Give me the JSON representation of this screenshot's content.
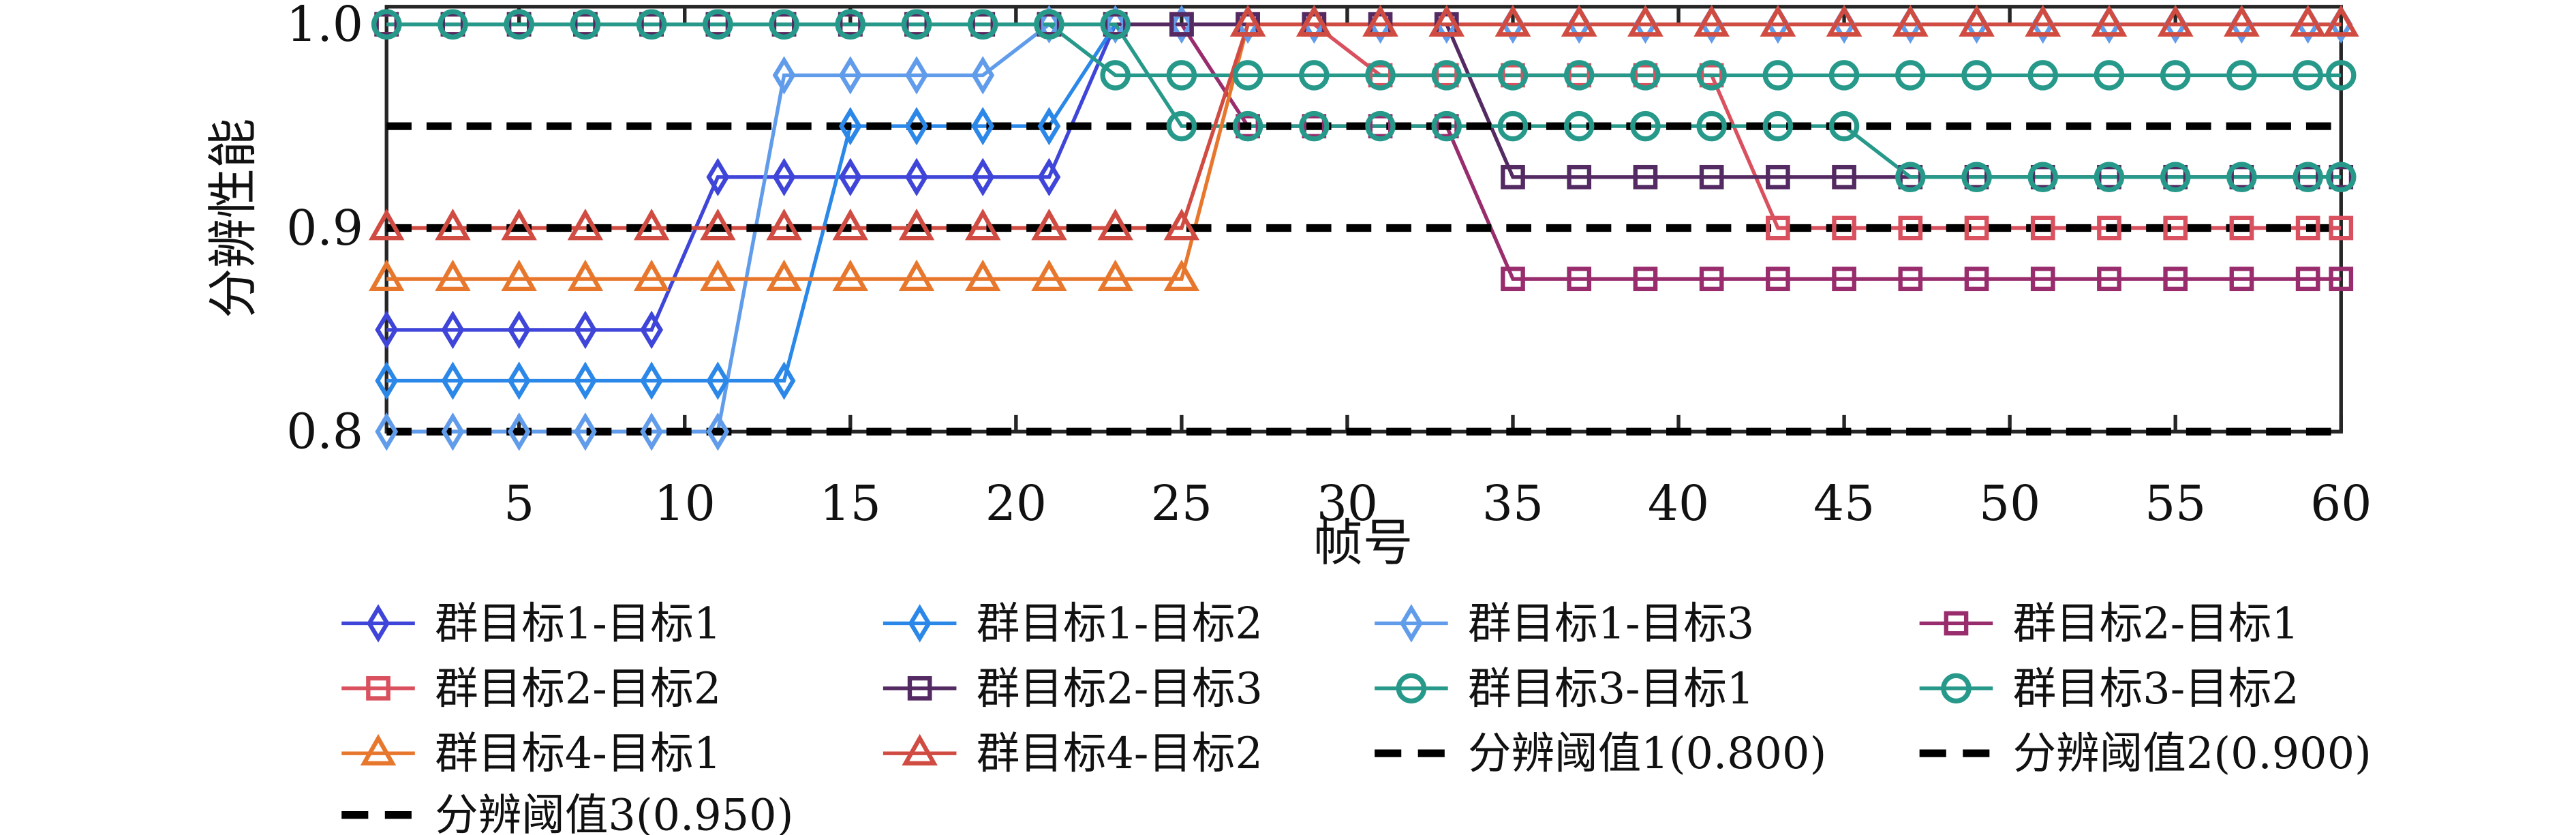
{
  "chart_data": {
    "type": "line",
    "xlabel": "帧号",
    "ylabel": "分辨性能",
    "xlim": [
      1,
      60
    ],
    "ylim": [
      0.8,
      1.009
    ],
    "x_ticks": [
      5,
      10,
      15,
      20,
      25,
      30,
      35,
      40,
      45,
      50,
      55,
      60
    ],
    "y_ticks": [
      "0.8",
      "0.9",
      "1.0"
    ],
    "y_tick_values": [
      0.8,
      0.9,
      1.0
    ],
    "grid": "off",
    "legend_position": "below",
    "x": [
      1,
      3,
      5,
      7,
      9,
      11,
      13,
      15,
      17,
      19,
      21,
      23,
      25,
      27,
      29,
      31,
      33,
      35,
      37,
      39,
      41,
      43,
      45,
      47,
      49,
      51,
      53,
      55,
      57,
      59,
      60
    ],
    "series": [
      {
        "name": "群目标1-目标1",
        "marker": "diamond",
        "color": "#3e45d8",
        "values": [
          0.85,
          0.85,
          0.85,
          0.85,
          0.85,
          0.925,
          0.925,
          0.925,
          0.925,
          0.925,
          0.925,
          1.0,
          1.0,
          1.0,
          1.0,
          1.0,
          1.0,
          1.0,
          1.0,
          1.0,
          1.0,
          1.0,
          1.0,
          1.0,
          1.0,
          1.0,
          1.0,
          1.0,
          1.0,
          1.0,
          1.0
        ]
      },
      {
        "name": "群目标1-目标2",
        "marker": "diamond",
        "color": "#2b87e8",
        "values": [
          0.825,
          0.825,
          0.825,
          0.825,
          0.825,
          0.825,
          0.825,
          0.95,
          0.95,
          0.95,
          0.95,
          1.0,
          1.0,
          1.0,
          1.0,
          1.0,
          1.0,
          1.0,
          1.0,
          1.0,
          1.0,
          1.0,
          1.0,
          1.0,
          1.0,
          1.0,
          1.0,
          1.0,
          1.0,
          1.0,
          1.0
        ]
      },
      {
        "name": "群目标1-目标3",
        "marker": "diamond",
        "color": "#619ceb",
        "values": [
          0.8,
          0.8,
          0.8,
          0.8,
          0.8,
          0.8,
          0.975,
          0.975,
          0.975,
          0.975,
          1.0,
          1.0,
          1.0,
          1.0,
          1.0,
          1.0,
          1.0,
          1.0,
          1.0,
          1.0,
          1.0,
          1.0,
          1.0,
          1.0,
          1.0,
          1.0,
          1.0,
          1.0,
          1.0,
          1.0,
          1.0
        ]
      },
      {
        "name": "群目标2-目标1",
        "marker": "square",
        "color": "#982c6d",
        "values": [
          1.0,
          1.0,
          1.0,
          1.0,
          1.0,
          1.0,
          1.0,
          1.0,
          1.0,
          1.0,
          1.0,
          1.0,
          1.0,
          0.95,
          0.95,
          0.95,
          0.95,
          0.875,
          0.875,
          0.875,
          0.875,
          0.875,
          0.875,
          0.875,
          0.875,
          0.875,
          0.875,
          0.875,
          0.875,
          0.875,
          0.875
        ]
      },
      {
        "name": "群目标2-目标2",
        "marker": "square",
        "color": "#d9505e",
        "values": [
          1.0,
          1.0,
          1.0,
          1.0,
          1.0,
          1.0,
          1.0,
          1.0,
          1.0,
          1.0,
          1.0,
          1.0,
          1.0,
          1.0,
          1.0,
          0.975,
          0.975,
          0.975,
          0.975,
          0.975,
          0.975,
          0.9,
          0.9,
          0.9,
          0.9,
          0.9,
          0.9,
          0.9,
          0.9,
          0.9,
          0.9
        ]
      },
      {
        "name": "群目标2-目标3",
        "marker": "square",
        "color": "#542a62",
        "values": [
          1.0,
          1.0,
          1.0,
          1.0,
          1.0,
          1.0,
          1.0,
          1.0,
          1.0,
          1.0,
          1.0,
          1.0,
          1.0,
          1.0,
          1.0,
          1.0,
          1.0,
          0.925,
          0.925,
          0.925,
          0.925,
          0.925,
          0.925,
          0.925,
          0.925,
          0.925,
          0.925,
          0.925,
          0.925,
          0.925,
          0.925
        ]
      },
      {
        "name": "群目标3-目标1",
        "marker": "circle",
        "color": "#27998a",
        "values": [
          1.0,
          1.0,
          1.0,
          1.0,
          1.0,
          1.0,
          1.0,
          1.0,
          1.0,
          1.0,
          1.0,
          0.975,
          0.975,
          0.975,
          0.975,
          0.975,
          0.975,
          0.975,
          0.975,
          0.975,
          0.975,
          0.975,
          0.975,
          0.975,
          0.975,
          0.975,
          0.975,
          0.975,
          0.975,
          0.975,
          0.975
        ]
      },
      {
        "name": "群目标3-目标2",
        "marker": "circle",
        "color": "#27998a",
        "values": [
          1.0,
          1.0,
          1.0,
          1.0,
          1.0,
          1.0,
          1.0,
          1.0,
          1.0,
          1.0,
          1.0,
          1.0,
          0.95,
          0.95,
          0.95,
          0.95,
          0.95,
          0.95,
          0.95,
          0.95,
          0.95,
          0.95,
          0.95,
          0.925,
          0.925,
          0.925,
          0.925,
          0.925,
          0.925,
          0.925,
          0.925
        ]
      },
      {
        "name": "群目标4-目标1",
        "marker": "triangle",
        "color": "#e8772e",
        "values": [
          0.875,
          0.875,
          0.875,
          0.875,
          0.875,
          0.875,
          0.875,
          0.875,
          0.875,
          0.875,
          0.875,
          0.875,
          0.875,
          1.0,
          1.0,
          1.0,
          1.0,
          1.0,
          1.0,
          1.0,
          1.0,
          1.0,
          1.0,
          1.0,
          1.0,
          1.0,
          1.0,
          1.0,
          1.0,
          1.0,
          1.0
        ]
      },
      {
        "name": "群目标4-目标2",
        "marker": "triangle",
        "color": "#d04b41",
        "values": [
          0.9,
          0.9,
          0.9,
          0.9,
          0.9,
          0.9,
          0.9,
          0.9,
          0.9,
          0.9,
          0.9,
          0.9,
          0.9,
          1.0,
          1.0,
          1.0,
          1.0,
          1.0,
          1.0,
          1.0,
          1.0,
          1.0,
          1.0,
          1.0,
          1.0,
          1.0,
          1.0,
          1.0,
          1.0,
          1.0,
          1.0
        ]
      }
    ],
    "thresholds": [
      {
        "label": "分辨阈值1(0.800)",
        "value": 0.8,
        "color": "#000000",
        "style": "dashed"
      },
      {
        "label": "分辨阈值2(0.900)",
        "value": 0.9,
        "color": "#000000",
        "style": "dashed"
      },
      {
        "label": "分辨阈值3(0.950)",
        "value": 0.95,
        "color": "#000000",
        "style": "dashed"
      }
    ],
    "legend_columns": 4
  }
}
